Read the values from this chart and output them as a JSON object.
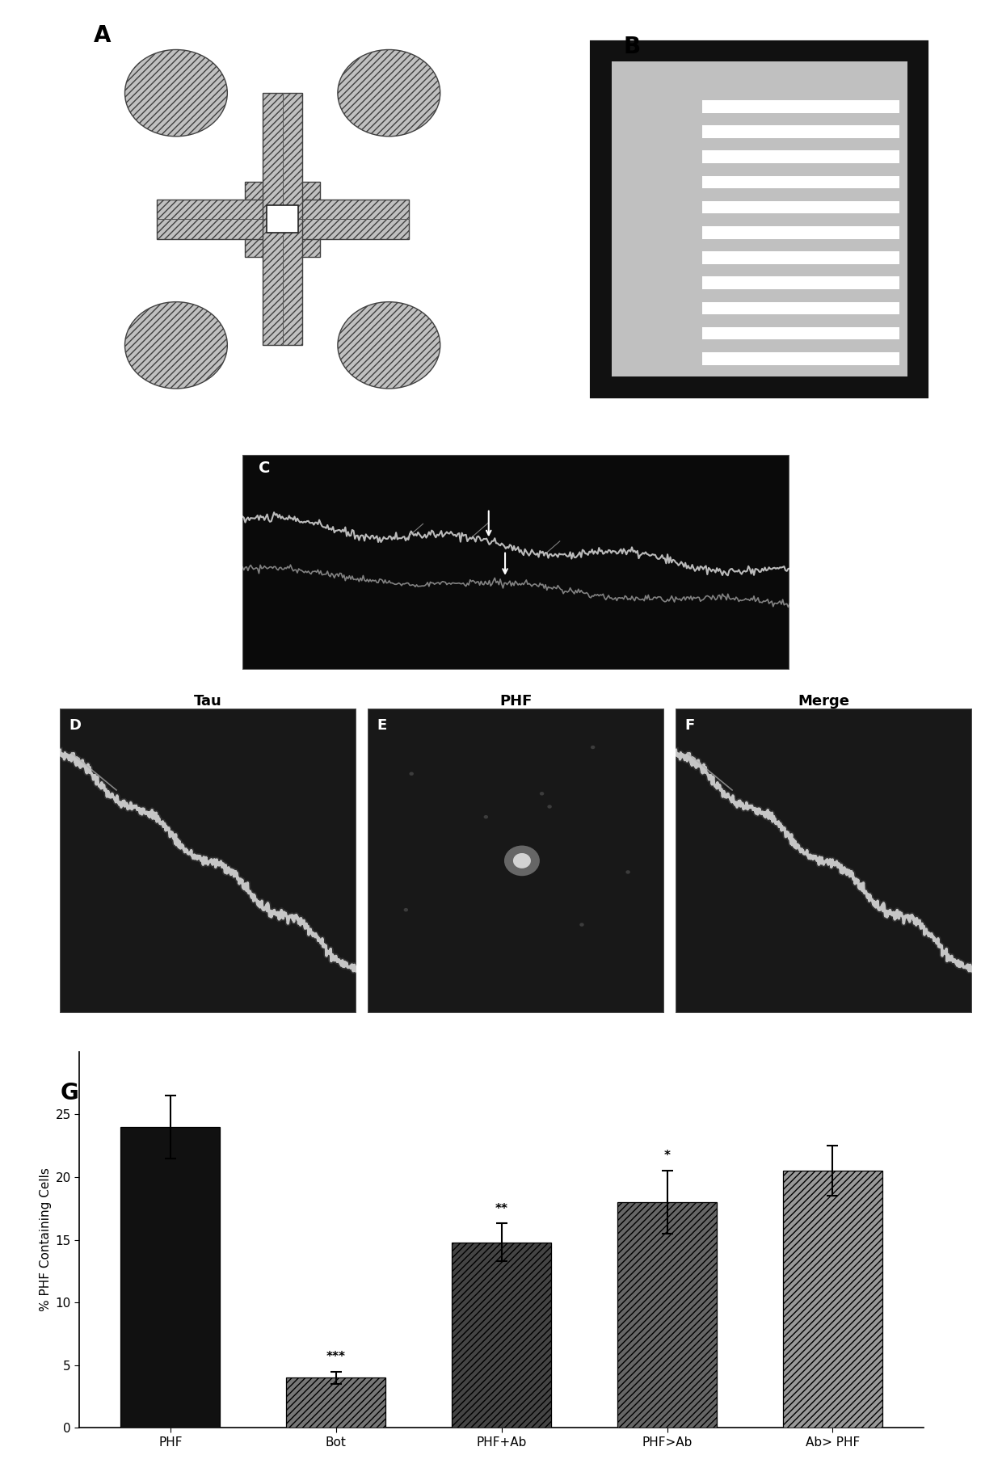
{
  "bar_labels": [
    "PHF",
    "Bot",
    "PHF+Ab",
    "PHF>Ab",
    "Ab> PHF"
  ],
  "bar_values": [
    24.0,
    4.0,
    14.8,
    18.0,
    20.5
  ],
  "bar_errors": [
    2.5,
    0.5,
    1.5,
    2.5,
    2.0
  ],
  "bar_colors": [
    "#111111",
    "#777777",
    "#444444",
    "#666666",
    "#999999"
  ],
  "bar_hatches": [
    "",
    "////",
    "////",
    "////",
    "////"
  ],
  "significance": [
    "",
    "***",
    "**",
    "*",
    ""
  ],
  "ylabel": "% PHF Containing Cells",
  "ylim": [
    0,
    30
  ],
  "yticks": [
    0,
    5,
    10,
    15,
    20,
    25
  ],
  "panel_label_G": "G",
  "panel_label_A": "A",
  "panel_label_B": "B",
  "panel_label_C": "C",
  "panel_label_D": "D",
  "panel_label_E": "E",
  "panel_label_F": "F",
  "col_labels": [
    "Tau",
    "PHF",
    "Merge"
  ],
  "bg_color": "#ffffff",
  "hatch_color": "#333333",
  "chip_hatch": "////",
  "chip_gray": "#c0c0c0",
  "chip_arm_color": "#c8c8c8",
  "stripe_bg": "#b0b0b0",
  "stripe_white": "#ffffff",
  "n_stripes": 11
}
